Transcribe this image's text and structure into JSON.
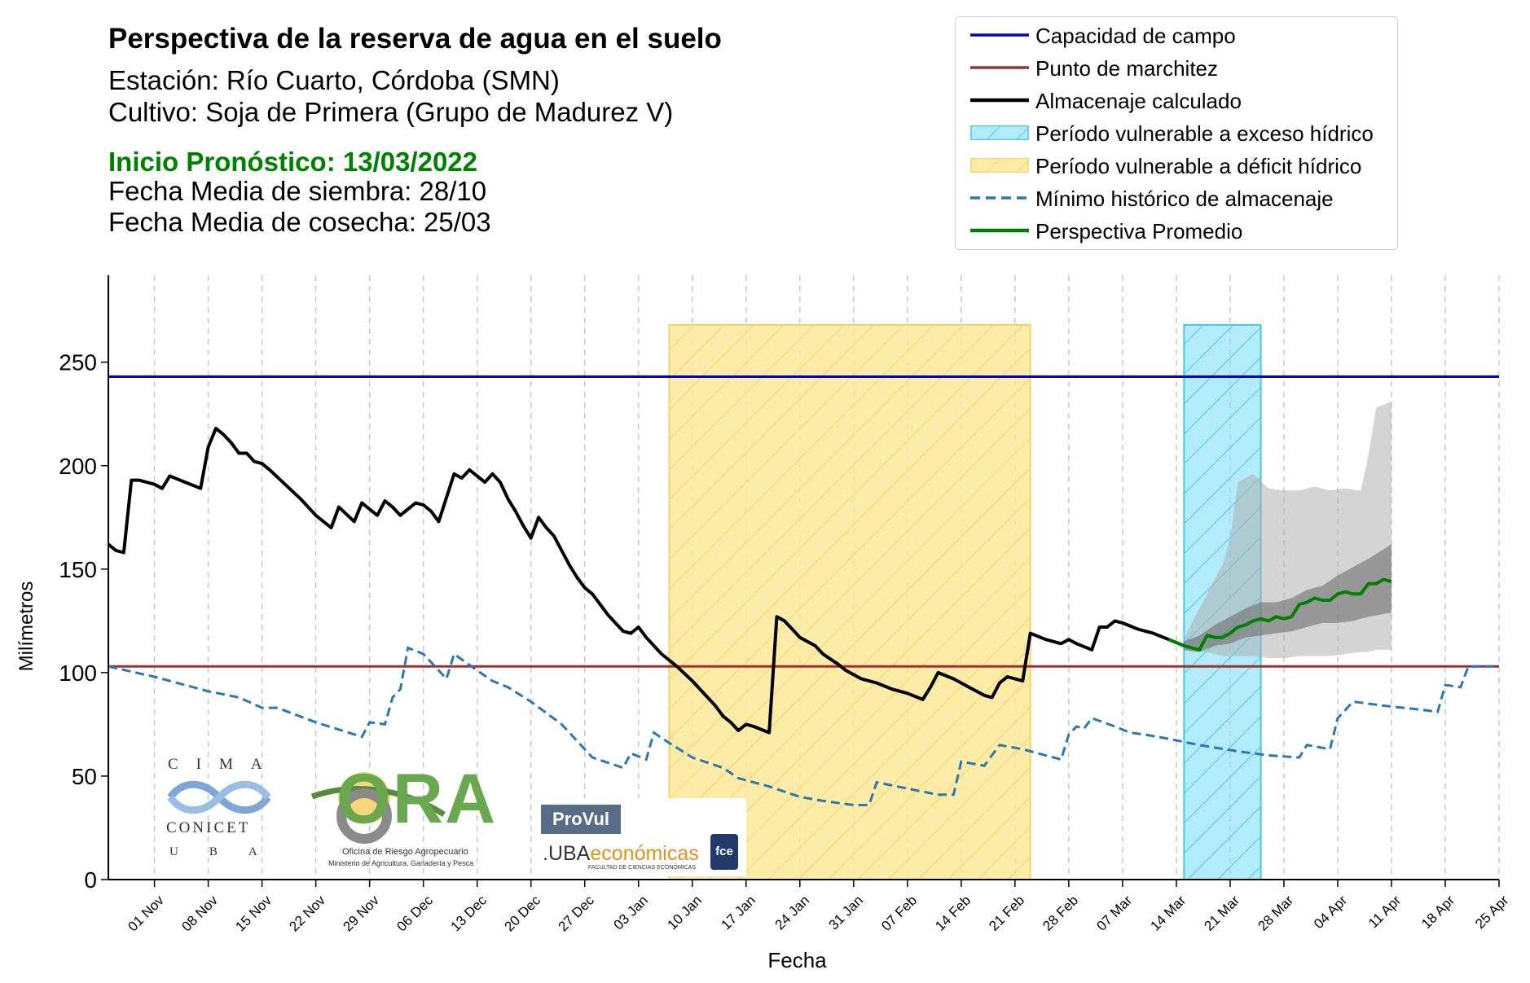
{
  "header": {
    "title": "Perspectiva de la reserva de agua en el suelo",
    "station": "Estación: Río Cuarto, Córdoba (SMN)",
    "crop": "Cultivo: Soja de Primera (Grupo de Madurez V)",
    "forecast_start": "Inicio Pronóstico: 13/03/2022",
    "sowing": "Fecha Media de siembra: 28/10",
    "harvest": "Fecha Media de cosecha: 25/03"
  },
  "legend": {
    "field_capacity": "Capacidad de campo",
    "wilting_point": "Punto de marchitez",
    "storage": "Almacenaje calculado",
    "excess_period": "Período vulnerable a exceso hídrico",
    "deficit_period": "Período vulnerable a déficit hídrico",
    "hist_min": "Mínimo histórico de almacenaje",
    "forecast": "Perspectiva Promedio"
  },
  "logos": {
    "cima_top": "CIMA",
    "cima_mid": "CONICET",
    "cima_bottom": "UBA",
    "ora_main": "ORA",
    "ora_sub1": "Oficina de Riesgo Agropecuario",
    "ora_sub2": "Ministerio de Agricultura, Ganadería y Pesca",
    "provul": "ProVul",
    "uba_prefix": ".UBA",
    "uba_suffix": "económicas",
    "uba_sub": "FACULTAD DE CIENCIAS ECONÓMICAS",
    "fce": "fce"
  },
  "colors": {
    "field_capacity": "#0000cc",
    "wilting_point": "#993333",
    "storage": "#000000",
    "excess_fill": "#7fe0f7",
    "deficit_fill": "#fde899",
    "hist_min": "#2a77b4",
    "forecast": "#008000",
    "header_green": "#008000"
  },
  "chart_data": {
    "type": "line",
    "xlabel": "Fecha",
    "ylabel": "Milímetros",
    "ylim": [
      0,
      292
    ],
    "yticks": [
      0,
      50,
      100,
      150,
      200,
      250
    ],
    "xlim": [
      "2021-10-26",
      "2022-04-25"
    ],
    "xticks": [
      {
        "date": "2021-11-01",
        "label": "01 Nov"
      },
      {
        "date": "2021-11-08",
        "label": "08 Nov"
      },
      {
        "date": "2021-11-15",
        "label": "15 Nov"
      },
      {
        "date": "2021-11-22",
        "label": "22 Nov"
      },
      {
        "date": "2021-11-29",
        "label": "29 Nov"
      },
      {
        "date": "2021-12-06",
        "label": "06 Dec"
      },
      {
        "date": "2021-12-13",
        "label": "13 Dec"
      },
      {
        "date": "2021-12-20",
        "label": "20 Dec"
      },
      {
        "date": "2021-12-27",
        "label": "27 Dec"
      },
      {
        "date": "2022-01-03",
        "label": "03 Jan"
      },
      {
        "date": "2022-01-10",
        "label": "10 Jan"
      },
      {
        "date": "2022-01-17",
        "label": "17 Jan"
      },
      {
        "date": "2022-01-24",
        "label": "24 Jan"
      },
      {
        "date": "2022-01-31",
        "label": "31 Jan"
      },
      {
        "date": "2022-02-07",
        "label": "07 Feb"
      },
      {
        "date": "2022-02-14",
        "label": "14 Feb"
      },
      {
        "date": "2022-02-21",
        "label": "21 Feb"
      },
      {
        "date": "2022-02-28",
        "label": "28 Feb"
      },
      {
        "date": "2022-03-07",
        "label": "07 Mar"
      },
      {
        "date": "2022-03-14",
        "label": "14 Mar"
      },
      {
        "date": "2022-03-21",
        "label": "21 Mar"
      },
      {
        "date": "2022-03-28",
        "label": "28 Mar"
      },
      {
        "date": "2022-04-04",
        "label": "04 Apr"
      },
      {
        "date": "2022-04-11",
        "label": "11 Apr"
      },
      {
        "date": "2022-04-18",
        "label": "18 Apr"
      },
      {
        "date": "2022-04-25",
        "label": "25 Apr"
      }
    ],
    "field_capacity": 243,
    "wilting_point": 103,
    "deficit_period": {
      "start": "2022-01-07",
      "end": "2022-02-23",
      "top": 268
    },
    "excess_period": {
      "start": "2022-03-15",
      "end": "2022-03-25",
      "top": 268
    },
    "storage": [
      [
        "2021-10-26",
        162
      ],
      [
        "2021-10-27",
        159
      ],
      [
        "2021-10-28",
        158
      ],
      [
        "2021-10-29",
        193
      ],
      [
        "2021-10-30",
        193
      ],
      [
        "2021-11-01",
        191
      ],
      [
        "2021-11-02",
        189
      ],
      [
        "2021-11-03",
        195
      ],
      [
        "2021-11-05",
        192
      ],
      [
        "2021-11-07",
        189
      ],
      [
        "2021-11-08",
        209
      ],
      [
        "2021-11-09",
        218
      ],
      [
        "2021-11-10",
        215
      ],
      [
        "2021-11-11",
        211
      ],
      [
        "2021-11-12",
        206
      ],
      [
        "2021-11-13",
        206
      ],
      [
        "2021-11-14",
        202
      ],
      [
        "2021-11-15",
        201
      ],
      [
        "2021-11-16",
        198
      ],
      [
        "2021-11-18",
        191
      ],
      [
        "2021-11-20",
        184
      ],
      [
        "2021-11-22",
        176
      ],
      [
        "2021-11-24",
        170
      ],
      [
        "2021-11-25",
        180
      ],
      [
        "2021-11-27",
        173
      ],
      [
        "2021-11-28",
        182
      ],
      [
        "2021-11-30",
        176
      ],
      [
        "2021-12-01",
        183
      ],
      [
        "2021-12-02",
        180
      ],
      [
        "2021-12-03",
        176
      ],
      [
        "2021-12-04",
        179
      ],
      [
        "2021-12-05",
        182
      ],
      [
        "2021-12-06",
        181
      ],
      [
        "2021-12-07",
        178
      ],
      [
        "2021-12-08",
        173
      ],
      [
        "2021-12-10",
        196
      ],
      [
        "2021-12-11",
        194
      ],
      [
        "2021-12-12",
        198
      ],
      [
        "2021-12-14",
        192
      ],
      [
        "2021-12-15",
        196
      ],
      [
        "2021-12-16",
        192
      ],
      [
        "2021-12-17",
        184
      ],
      [
        "2021-12-18",
        178
      ],
      [
        "2021-12-19",
        171
      ],
      [
        "2021-12-20",
        165
      ],
      [
        "2021-12-21",
        175
      ],
      [
        "2021-12-22",
        170
      ],
      [
        "2021-12-23",
        166
      ],
      [
        "2021-12-24",
        159
      ],
      [
        "2021-12-25",
        152
      ],
      [
        "2021-12-26",
        146
      ],
      [
        "2021-12-27",
        141
      ],
      [
        "2021-12-28",
        138
      ],
      [
        "2021-12-29",
        133
      ],
      [
        "2021-12-30",
        128
      ],
      [
        "2021-12-31",
        124
      ],
      [
        "2022-01-01",
        120
      ],
      [
        "2022-01-02",
        119
      ],
      [
        "2022-01-03",
        122
      ],
      [
        "2022-01-04",
        117
      ],
      [
        "2022-01-05",
        113
      ],
      [
        "2022-01-06",
        109
      ],
      [
        "2022-01-08",
        103
      ],
      [
        "2022-01-10",
        96
      ],
      [
        "2022-01-11",
        92
      ],
      [
        "2022-01-13",
        84
      ],
      [
        "2022-01-14",
        79
      ],
      [
        "2022-01-15",
        76
      ],
      [
        "2022-01-16",
        72
      ],
      [
        "2022-01-17",
        75
      ],
      [
        "2022-01-18",
        74
      ],
      [
        "2022-01-20",
        71
      ],
      [
        "2022-01-21",
        127
      ],
      [
        "2022-01-22",
        125
      ],
      [
        "2022-01-23",
        121
      ],
      [
        "2022-01-24",
        117
      ],
      [
        "2022-01-26",
        113
      ],
      [
        "2022-01-27",
        109
      ],
      [
        "2022-01-29",
        104
      ],
      [
        "2022-01-30",
        101
      ],
      [
        "2022-02-01",
        97
      ],
      [
        "2022-02-03",
        95
      ],
      [
        "2022-02-05",
        92
      ],
      [
        "2022-02-07",
        90
      ],
      [
        "2022-02-09",
        87
      ],
      [
        "2022-02-10",
        93
      ],
      [
        "2022-02-11",
        100
      ],
      [
        "2022-02-13",
        97
      ],
      [
        "2022-02-15",
        93
      ],
      [
        "2022-02-17",
        89
      ],
      [
        "2022-02-18",
        88
      ],
      [
        "2022-02-19",
        95
      ],
      [
        "2022-02-20",
        98
      ],
      [
        "2022-02-22",
        96
      ],
      [
        "2022-02-23",
        119
      ],
      [
        "2022-02-25",
        116
      ],
      [
        "2022-02-27",
        114
      ],
      [
        "2022-02-28",
        116
      ],
      [
        "2022-03-01",
        114
      ],
      [
        "2022-03-03",
        111
      ],
      [
        "2022-03-04",
        122
      ],
      [
        "2022-03-05",
        122
      ],
      [
        "2022-03-06",
        125
      ],
      [
        "2022-03-07",
        124
      ],
      [
        "2022-03-09",
        121
      ],
      [
        "2022-03-11",
        119
      ],
      [
        "2022-03-13",
        116
      ],
      [
        "2022-03-15",
        113
      ]
    ],
    "hist_min": [
      [
        "2021-10-26",
        103
      ],
      [
        "2021-11-01",
        98
      ],
      [
        "2021-11-08",
        91
      ],
      [
        "2021-11-12",
        88
      ],
      [
        "2021-11-15",
        83
      ],
      [
        "2021-11-17",
        83
      ],
      [
        "2021-11-22",
        76
      ],
      [
        "2021-11-28",
        69
      ],
      [
        "2021-11-29",
        76
      ],
      [
        "2021-12-01",
        75
      ],
      [
        "2021-12-02",
        88
      ],
      [
        "2021-12-03",
        92
      ],
      [
        "2021-12-04",
        112
      ],
      [
        "2021-12-06",
        109
      ],
      [
        "2021-12-09",
        97
      ],
      [
        "2021-12-10",
        109
      ],
      [
        "2021-12-13",
        101
      ],
      [
        "2021-12-15",
        96
      ],
      [
        "2021-12-17",
        93
      ],
      [
        "2021-12-20",
        86
      ],
      [
        "2021-12-24",
        75
      ],
      [
        "2021-12-26",
        67
      ],
      [
        "2021-12-28",
        59
      ],
      [
        "2022-01-01",
        54
      ],
      [
        "2022-01-02",
        61
      ],
      [
        "2022-01-04",
        58
      ],
      [
        "2022-01-05",
        71
      ],
      [
        "2022-01-07",
        66
      ],
      [
        "2022-01-10",
        59
      ],
      [
        "2022-01-14",
        54
      ],
      [
        "2022-01-16",
        49
      ],
      [
        "2022-01-20",
        45
      ],
      [
        "2022-01-24",
        40
      ],
      [
        "2022-01-27",
        38
      ],
      [
        "2022-01-31",
        36
      ],
      [
        "2022-02-02",
        36
      ],
      [
        "2022-02-03",
        47
      ],
      [
        "2022-02-07",
        44
      ],
      [
        "2022-02-11",
        41
      ],
      [
        "2022-02-13",
        41
      ],
      [
        "2022-02-14",
        57
      ],
      [
        "2022-02-17",
        55
      ],
      [
        "2022-02-19",
        65
      ],
      [
        "2022-02-22",
        63
      ],
      [
        "2022-02-27",
        58
      ],
      [
        "2022-02-28",
        70
      ],
      [
        "2022-03-01",
        74
      ],
      [
        "2022-03-02",
        73
      ],
      [
        "2022-03-03",
        78
      ],
      [
        "2022-03-06",
        74
      ],
      [
        "2022-03-08",
        71
      ],
      [
        "2022-03-10",
        70
      ],
      [
        "2022-03-13",
        68
      ],
      [
        "2022-03-17",
        65
      ],
      [
        "2022-03-22",
        62
      ],
      [
        "2022-03-26",
        60
      ],
      [
        "2022-03-30",
        59
      ],
      [
        "2022-03-31",
        65
      ],
      [
        "2022-04-03",
        63
      ],
      [
        "2022-04-04",
        78
      ],
      [
        "2022-04-06",
        86
      ],
      [
        "2022-04-10",
        84
      ],
      [
        "2022-04-15",
        82
      ],
      [
        "2022-04-17",
        81
      ],
      [
        "2022-04-18",
        94
      ],
      [
        "2022-04-20",
        93
      ],
      [
        "2022-04-21",
        103
      ],
      [
        "2022-04-25",
        103
      ]
    ],
    "forecast_mean": [
      [
        "2022-03-13",
        116
      ],
      [
        "2022-03-15",
        113
      ],
      [
        "2022-03-17",
        111
      ],
      [
        "2022-03-18",
        118
      ],
      [
        "2022-03-19",
        117
      ],
      [
        "2022-03-20",
        117
      ],
      [
        "2022-03-21",
        119
      ],
      [
        "2022-03-22",
        122
      ],
      [
        "2022-03-23",
        123
      ],
      [
        "2022-03-24",
        125
      ],
      [
        "2022-03-25",
        126
      ],
      [
        "2022-03-26",
        125
      ],
      [
        "2022-03-27",
        127
      ],
      [
        "2022-03-28",
        126
      ],
      [
        "2022-03-29",
        127
      ],
      [
        "2022-03-30",
        133
      ],
      [
        "2022-03-31",
        134
      ],
      [
        "2022-04-01",
        136
      ],
      [
        "2022-04-02",
        135
      ],
      [
        "2022-04-03",
        135
      ],
      [
        "2022-04-04",
        138
      ],
      [
        "2022-04-05",
        139
      ],
      [
        "2022-04-06",
        138
      ],
      [
        "2022-04-07",
        138
      ],
      [
        "2022-04-08",
        143
      ],
      [
        "2022-04-09",
        143
      ],
      [
        "2022-04-10",
        145
      ],
      [
        "2022-04-11",
        144
      ]
    ],
    "inner_band": [
      [
        "2022-03-15",
        111,
        115
      ],
      [
        "2022-03-17",
        110,
        118
      ],
      [
        "2022-03-19",
        113,
        123
      ],
      [
        "2022-03-21",
        114,
        127
      ],
      [
        "2022-03-23",
        117,
        131
      ],
      [
        "2022-03-25",
        118,
        134
      ],
      [
        "2022-03-27",
        119,
        134
      ],
      [
        "2022-03-29",
        120,
        136
      ],
      [
        "2022-03-31",
        122,
        140
      ],
      [
        "2022-04-02",
        124,
        142
      ],
      [
        "2022-04-04",
        124,
        147
      ],
      [
        "2022-04-06",
        125,
        151
      ],
      [
        "2022-04-08",
        127,
        155
      ],
      [
        "2022-04-11",
        129,
        162
      ]
    ],
    "outer_band": [
      [
        "2022-03-15",
        111,
        116
      ],
      [
        "2022-03-16",
        110,
        124
      ],
      [
        "2022-03-18",
        110,
        138
      ],
      [
        "2022-03-20",
        108,
        152
      ],
      [
        "2022-03-21",
        108,
        165
      ],
      [
        "2022-03-22",
        108,
        192
      ],
      [
        "2022-03-24",
        108,
        196
      ],
      [
        "2022-03-26",
        107,
        189
      ],
      [
        "2022-03-28",
        107,
        188
      ],
      [
        "2022-03-30",
        108,
        188
      ],
      [
        "2022-04-01",
        108,
        190
      ],
      [
        "2022-04-03",
        108,
        188
      ],
      [
        "2022-04-05",
        109,
        189
      ],
      [
        "2022-04-07",
        110,
        188
      ],
      [
        "2022-04-08",
        110,
        205
      ],
      [
        "2022-04-09",
        111,
        228
      ],
      [
        "2022-04-11",
        111,
        231
      ]
    ]
  }
}
